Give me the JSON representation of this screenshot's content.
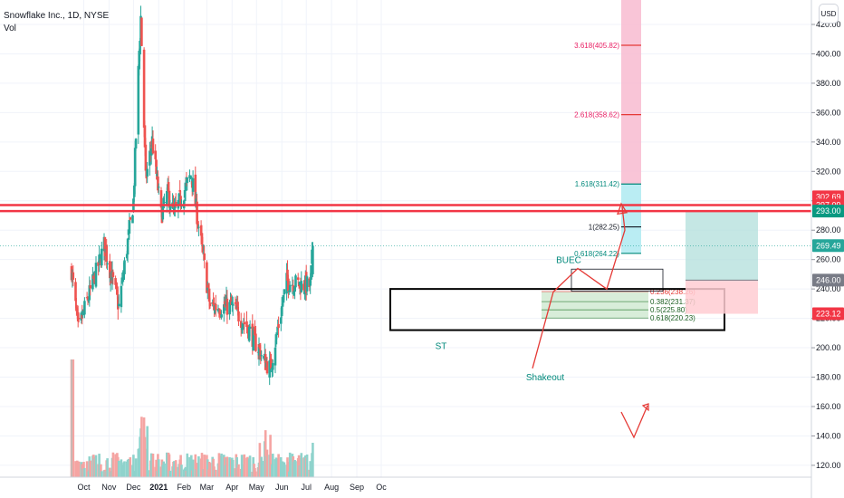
{
  "header": {
    "title": "Snowflake Inc., 1D, NYSE",
    "indicator": "Vol",
    "currency": "USD"
  },
  "colors": {
    "up": "#26a69a",
    "down": "#ef5350",
    "resistance": "#f23645",
    "fib_pink": "#f8bbd0",
    "fib_blue": "#b2ebf2",
    "rr_profit": "#b2dfdb",
    "rr_loss": "#ffcdd2"
  },
  "chart_data": {
    "type": "candlestick",
    "title": "Snowflake Inc., 1D, NYSE",
    "ylabel": "USD",
    "ylim": [
      113,
      432
    ],
    "x_tick_labels": [
      "Oct",
      "Nov",
      "Dec",
      "2021",
      "Feb",
      "Mar",
      "Apr",
      "May",
      "Jun",
      "Jul",
      "Aug",
      "Sep",
      "Oc"
    ],
    "y_tick_labels": [
      "120.00",
      "140.00",
      "160.00",
      "180.00",
      "200.00",
      "220.00",
      "240.00",
      "260.00",
      "280.00",
      "300.00",
      "320.00",
      "340.00",
      "360.00",
      "380.00",
      "400.00",
      "420.00"
    ],
    "price_badges": [
      {
        "label": "302.69",
        "value": 302.69,
        "color": "#f23645"
      },
      {
        "label": "297.09",
        "value": 297.09,
        "color": "#f23645"
      },
      {
        "label": "293.00",
        "value": 293.0,
        "color": "#089981"
      },
      {
        "label": "269.49",
        "value": 269.49,
        "color": "#26a69a"
      },
      {
        "label": "246.00",
        "value": 246.0,
        "color": "#787b86"
      },
      {
        "label": "223.12",
        "value": 223.12,
        "color": "#f23645"
      }
    ],
    "resistance_lines": [
      297.09,
      293.0
    ],
    "fib_extension_levels": [
      {
        "label": "3.618(405.82)",
        "value": 405.82
      },
      {
        "label": "2.618(358.62)",
        "value": 358.62
      },
      {
        "label": "1.618(311.42)",
        "value": 311.42
      },
      {
        "label": "1(282.25)",
        "value": 282.25
      },
      {
        "label": "0.618(264.22)",
        "value": 264.22
      }
    ],
    "fib_retracement_levels": [
      {
        "label": "0.236(238.26)",
        "value": 238.26
      },
      {
        "label": "0.382(231.37)",
        "value": 231.37
      },
      {
        "label": "0.5(225.80)",
        "value": 225.8
      },
      {
        "label": "0.618(220.23)",
        "value": 220.23
      }
    ],
    "annotations": [
      "BUEC",
      "ST",
      "Shakeout"
    ],
    "key_prices": [
      {
        "date": "2020-09-16",
        "close": 253
      },
      {
        "date": "2020-09-24",
        "close": 212
      },
      {
        "date": "2020-10-20",
        "close": 258
      },
      {
        "date": "2020-10-26",
        "close": 270
      },
      {
        "date": "2020-11-13",
        "close": 228
      },
      {
        "date": "2020-12-01",
        "close": 300
      },
      {
        "date": "2020-12-08",
        "close": 402
      },
      {
        "date": "2020-12-10",
        "close": 425
      },
      {
        "date": "2020-12-16",
        "close": 314
      },
      {
        "date": "2020-12-24",
        "close": 341
      },
      {
        "date": "2021-01-04",
        "close": 290
      },
      {
        "date": "2021-01-12",
        "close": 305
      },
      {
        "date": "2021-01-20",
        "close": 291
      },
      {
        "date": "2021-02-10",
        "close": 318
      },
      {
        "date": "2021-03-05",
        "close": 228
      },
      {
        "date": "2021-04-01",
        "close": 228
      },
      {
        "date": "2021-04-20",
        "close": 214
      },
      {
        "date": "2021-05-12",
        "close": 190
      },
      {
        "date": "2021-05-18",
        "close": 186
      },
      {
        "date": "2021-06-07",
        "close": 245
      },
      {
        "date": "2021-06-25",
        "close": 243
      },
      {
        "date": "2021-07-06",
        "close": 242
      },
      {
        "date": "2021-07-09",
        "close": 269.49
      }
    ]
  }
}
